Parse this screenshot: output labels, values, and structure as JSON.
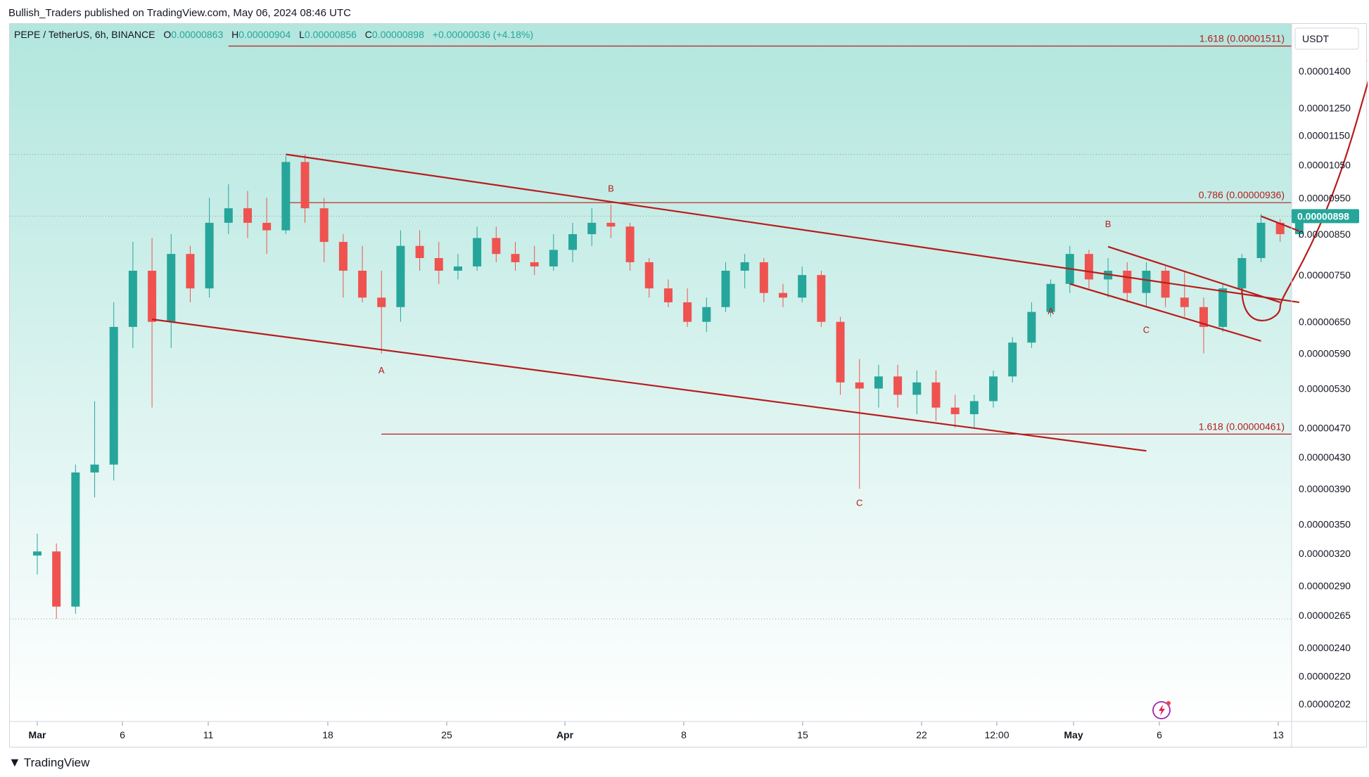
{
  "header": {
    "published": "Bullish_Traders published on TradingView.com, May 06, 2024 08:46 UTC"
  },
  "legend": {
    "symbol": "PEPE / TetherUS, 6h, BINANCE",
    "o_label": "O",
    "o": "0.00000863",
    "h_label": "H",
    "h": "0.00000904",
    "l_label": "L",
    "l": "0.00000856",
    "c_label": "C",
    "c": "0.00000898",
    "change": "+0.00000036 (+4.18%)"
  },
  "currency": "USDT",
  "last_price": "0.00000898",
  "footer": {
    "brand": "TradingView"
  },
  "colors": {
    "up": "#26a69a",
    "down": "#ef5350",
    "drawing": "#b71c1c",
    "bg_top": "#b2e6de",
    "bg_bottom": "#ffffff",
    "last_price_bg": "#26a69a"
  },
  "chart_data": {
    "type": "candlestick",
    "scale": "log",
    "price_ticks": [
      "0.00001400",
      "0.00001250",
      "0.00001150",
      "0.00001050",
      "0.00000950",
      "0.00000850",
      "0.00000750",
      "0.00000650",
      "0.00000590",
      "0.00000530",
      "0.00000470",
      "0.00000430",
      "0.00000390",
      "0.00000350",
      "0.00000320",
      "0.00000290",
      "0.00000265",
      "0.00000240",
      "0.00000220",
      "0.00000202"
    ],
    "x_ticks": [
      "Mar",
      "6",
      "11",
      "18",
      "25",
      "Apr",
      "8",
      "15",
      "22",
      "12:00",
      "May",
      "6",
      "13"
    ],
    "fib_levels": [
      {
        "label": "1.618 (0.00001511)",
        "price": 1.511e-05
      },
      {
        "label": "0.786 (0.00000936)",
        "price": 9.36e-06
      },
      {
        "label": "1.618 (0.00000461)",
        "price": 4.61e-06
      }
    ],
    "dotted_levels": [
      1.085e-05,
      8.98e-06,
      2.62e-06
    ],
    "wave_labels": [
      {
        "text": "A",
        "date": "2024-03-19",
        "price": 5.55e-06
      },
      {
        "text": "B",
        "date": "2024-03-31",
        "price": 9.68e-06
      },
      {
        "text": "C",
        "date": "2024-04-13",
        "price": 3.7e-06
      },
      {
        "text": "A",
        "date": "2024-04-23",
        "price": 6.65e-06
      },
      {
        "text": "B",
        "date": "2024-04-26",
        "price": 8.68e-06
      },
      {
        "text": "C",
        "date": "2024-04-28",
        "price": 6.28e-06
      }
    ],
    "trendlines": [
      {
        "from": [
          "2024-03-14",
          1.085e-05
        ],
        "to": [
          "2024-05-06",
          6.9e-06
        ]
      },
      {
        "from": [
          "2024-03-07",
          6.55e-06
        ],
        "to": [
          "2024-04-28",
          4.38e-06
        ]
      },
      {
        "from": [
          "2024-04-26",
          8.18e-06
        ],
        "to": [
          "2024-05-05",
          6.9e-06
        ]
      },
      {
        "from": [
          "2024-04-24",
          7.3e-06
        ],
        "to": [
          "2024-05-04",
          6.13e-06
        ]
      },
      {
        "from": [
          "2024-05-04",
          8.98e-06
        ],
        "to": [
          "2024-05-06",
          8.58e-06
        ]
      }
    ],
    "projection": {
      "points": [
        [
          "2024-05-03",
          7.2e-06
        ],
        [
          "2024-05-05",
          6.8e-06
        ],
        [
          "2024-05-07",
          8e-06
        ],
        [
          "2024-05-09",
          1.2e-05
        ],
        [
          "2024-05-10",
          1.48e-05
        ]
      ]
    },
    "candles": [
      [
        "2024-03-01",
        3.18e-06,
        3.4e-06,
        3e-06,
        3.22e-06
      ],
      [
        "2024-03-02",
        3.22e-06,
        3.3e-06,
        2.62e-06,
        2.72e-06
      ],
      [
        "2024-03-03",
        2.72e-06,
        4.2e-06,
        2.66e-06,
        4.1e-06
      ],
      [
        "2024-03-04",
        4.1e-06,
        5.1e-06,
        3.8e-06,
        4.2e-06
      ],
      [
        "2024-03-05",
        4.2e-06,
        6.9e-06,
        4e-06,
        6.4e-06
      ],
      [
        "2024-03-06",
        6.4e-06,
        8.3e-06,
        6e-06,
        7.6e-06
      ],
      [
        "2024-03-07",
        7.6e-06,
        8.4e-06,
        5e-06,
        6.5e-06
      ],
      [
        "2024-03-08",
        6.5e-06,
        8.5e-06,
        6e-06,
        8e-06
      ],
      [
        "2024-03-09",
        8e-06,
        8.2e-06,
        6.9e-06,
        7.2e-06
      ],
      [
        "2024-03-10",
        7.2e-06,
        9.5e-06,
        7e-06,
        8.8e-06
      ],
      [
        "2024-03-11",
        8.8e-06,
        9.9e-06,
        8.5e-06,
        9.2e-06
      ],
      [
        "2024-03-12",
        9.2e-06,
        9.7e-06,
        8.4e-06,
        8.8e-06
      ],
      [
        "2024-03-13",
        8.8e-06,
        9.5e-06,
        8e-06,
        8.6e-06
      ],
      [
        "2024-03-14",
        8.6e-06,
        1.08e-05,
        8.5e-06,
        1.06e-05
      ],
      [
        "2024-03-15",
        1.06e-05,
        1.085e-05,
        8.8e-06,
        9.2e-06
      ],
      [
        "2024-03-16",
        9.2e-06,
        9.5e-06,
        7.8e-06,
        8.3e-06
      ],
      [
        "2024-03-17",
        8.3e-06,
        8.5e-06,
        7e-06,
        7.6e-06
      ],
      [
        "2024-03-18",
        7.6e-06,
        8.2e-06,
        6.9e-06,
        7e-06
      ],
      [
        "2024-03-19",
        7e-06,
        7.6e-06,
        5.9e-06,
        6.8e-06
      ],
      [
        "2024-03-20",
        6.8e-06,
        8.6e-06,
        6.5e-06,
        8.2e-06
      ],
      [
        "2024-03-21",
        8.2e-06,
        8.6e-06,
        7.6e-06,
        7.9e-06
      ],
      [
        "2024-03-22",
        7.9e-06,
        8.3e-06,
        7.3e-06,
        7.6e-06
      ],
      [
        "2024-03-23",
        7.6e-06,
        8e-06,
        7.4e-06,
        7.7e-06
      ],
      [
        "2024-03-24",
        7.7e-06,
        8.7e-06,
        7.6e-06,
        8.4e-06
      ],
      [
        "2024-03-25",
        8.4e-06,
        8.7e-06,
        7.8e-06,
        8e-06
      ],
      [
        "2024-03-26",
        8e-06,
        8.3e-06,
        7.6e-06,
        7.8e-06
      ],
      [
        "2024-03-27",
        7.8e-06,
        8.2e-06,
        7.5e-06,
        7.7e-06
      ],
      [
        "2024-03-28",
        7.7e-06,
        8.5e-06,
        7.6e-06,
        8.1e-06
      ],
      [
        "2024-03-29",
        8.1e-06,
        8.8e-06,
        7.8e-06,
        8.5e-06
      ],
      [
        "2024-03-30",
        8.5e-06,
        9.2e-06,
        8.2e-06,
        8.8e-06
      ],
      [
        "2024-03-31",
        8.8e-06,
        9.3e-06,
        8.4e-06,
        8.7e-06
      ],
      [
        "2024-04-01",
        8.7e-06,
        8.8e-06,
        7.6e-06,
        7.8e-06
      ],
      [
        "2024-04-02",
        7.8e-06,
        7.9e-06,
        7e-06,
        7.2e-06
      ],
      [
        "2024-04-03",
        7.2e-06,
        7.4e-06,
        6.8e-06,
        6.9e-06
      ],
      [
        "2024-04-04",
        6.9e-06,
        7.2e-06,
        6.4e-06,
        6.5e-06
      ],
      [
        "2024-04-05",
        6.5e-06,
        7e-06,
        6.3e-06,
        6.8e-06
      ],
      [
        "2024-04-06",
        6.8e-06,
        7.8e-06,
        6.7e-06,
        7.6e-06
      ],
      [
        "2024-04-07",
        7.6e-06,
        8e-06,
        7.2e-06,
        7.8e-06
      ],
      [
        "2024-04-08",
        7.8e-06,
        7.9e-06,
        6.9e-06,
        7.1e-06
      ],
      [
        "2024-04-09",
        7.1e-06,
        7.3e-06,
        6.8e-06,
        7e-06
      ],
      [
        "2024-04-10",
        7e-06,
        7.7e-06,
        6.9e-06,
        7.5e-06
      ],
      [
        "2024-04-11",
        7.5e-06,
        7.6e-06,
        6.4e-06,
        6.5e-06
      ],
      [
        "2024-04-12",
        6.5e-06,
        6.6e-06,
        5.2e-06,
        5.4e-06
      ],
      [
        "2024-04-13",
        5.4e-06,
        5.8e-06,
        3.9e-06,
        5.3e-06
      ],
      [
        "2024-04-14",
        5.3e-06,
        5.7e-06,
        5e-06,
        5.5e-06
      ],
      [
        "2024-04-15",
        5.5e-06,
        5.7e-06,
        5e-06,
        5.2e-06
      ],
      [
        "2024-04-16",
        5.2e-06,
        5.6e-06,
        4.9e-06,
        5.4e-06
      ],
      [
        "2024-04-17",
        5.4e-06,
        5.6e-06,
        4.8e-06,
        5e-06
      ],
      [
        "2024-04-18",
        5e-06,
        5.2e-06,
        4.7e-06,
        4.9e-06
      ],
      [
        "2024-04-19",
        4.9e-06,
        5.2e-06,
        4.7e-06,
        5.1e-06
      ],
      [
        "2024-04-20",
        5.1e-06,
        5.6e-06,
        5e-06,
        5.5e-06
      ],
      [
        "2024-04-21",
        5.5e-06,
        6.2e-06,
        5.4e-06,
        6.1e-06
      ],
      [
        "2024-04-22",
        6.1e-06,
        6.9e-06,
        6e-06,
        6.7e-06
      ],
      [
        "2024-04-23",
        6.7e-06,
        7.4e-06,
        6.6e-06,
        7.3e-06
      ],
      [
        "2024-04-24",
        7.3e-06,
        8.2e-06,
        7.1e-06,
        8e-06
      ],
      [
        "2024-04-25",
        8e-06,
        8.1e-06,
        7.2e-06,
        7.4e-06
      ],
      [
        "2024-04-26",
        7.4e-06,
        7.9e-06,
        7e-06,
        7.6e-06
      ],
      [
        "2024-04-27",
        7.6e-06,
        7.8e-06,
        6.9e-06,
        7.1e-06
      ],
      [
        "2024-04-28",
        7.1e-06,
        7.8e-06,
        6.8e-06,
        7.6e-06
      ],
      [
        "2024-04-29",
        7.6e-06,
        7.7e-06,
        6.8e-06,
        7e-06
      ],
      [
        "2024-04-30",
        7e-06,
        7.6e-06,
        6.6e-06,
        6.8e-06
      ],
      [
        "2024-05-01",
        6.8e-06,
        7e-06,
        5.9e-06,
        6.4e-06
      ],
      [
        "2024-05-02",
        6.4e-06,
        7.3e-06,
        6.3e-06,
        7.2e-06
      ],
      [
        "2024-05-03",
        7.2e-06,
        8e-06,
        7.1e-06,
        7.9e-06
      ],
      [
        "2024-05-04",
        7.9e-06,
        9.04e-06,
        7.8e-06,
        8.8e-06
      ],
      [
        "2024-05-05",
        8.8e-06,
        8.9e-06,
        8.3e-06,
        8.5e-06
      ],
      [
        "2024-05-06",
        8.5e-06,
        9.04e-06,
        8.4e-06,
        8.98e-06
      ]
    ]
  }
}
